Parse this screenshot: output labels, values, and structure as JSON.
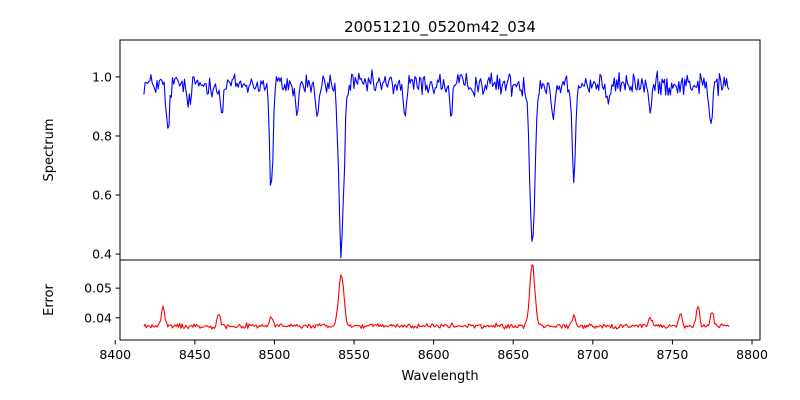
{
  "chart_data": {
    "type": "line",
    "title": "20051210_0520m42_034",
    "xlabel": "Wavelength",
    "xlim": [
      8403,
      8805
    ],
    "xticks": [
      8400,
      8450,
      8500,
      8550,
      8600,
      8650,
      8700,
      8750,
      8800
    ],
    "x_range": [
      8418,
      8786
    ],
    "panels": [
      {
        "id": "spectrum",
        "ylabel": "Spectrum",
        "ylim": [
          0.38,
          1.125
        ],
        "yticks": [
          0.4,
          0.6,
          0.8,
          1.0
        ],
        "ytick_labels": [
          "0.4",
          "0.6",
          "0.8",
          "1.0"
        ],
        "series": [
          {
            "color": "#0000ff",
            "baseline": 0.975,
            "noise": 0.04,
            "features": [
              {
                "x": 8433,
                "depth": 0.17,
                "width": 1.0
              },
              {
                "x": 8446,
                "depth": 0.08,
                "width": 1.0
              },
              {
                "x": 8467,
                "depth": 0.1,
                "width": 1.0
              },
              {
                "x": 8498,
                "depth": 0.36,
                "width": 1.1
              },
              {
                "x": 8514,
                "depth": 0.1,
                "width": 1.0
              },
              {
                "x": 8527,
                "depth": 0.1,
                "width": 1.2
              },
              {
                "x": 8542,
                "depth": 0.56,
                "width": 1.6
              },
              {
                "x": 8582,
                "depth": 0.1,
                "width": 1.0
              },
              {
                "x": 8611,
                "depth": 0.1,
                "width": 1.0
              },
              {
                "x": 8662,
                "depth": 0.53,
                "width": 1.6
              },
              {
                "x": 8675,
                "depth": 0.12,
                "width": 1.0
              },
              {
                "x": 8688,
                "depth": 0.31,
                "width": 1.0
              },
              {
                "x": 8710,
                "depth": 0.08,
                "width": 1.0
              },
              {
                "x": 8736,
                "depth": 0.1,
                "width": 1.0
              },
              {
                "x": 8774,
                "depth": 0.15,
                "width": 1.0
              }
            ]
          }
        ]
      },
      {
        "id": "error",
        "ylabel": "Error",
        "ylim": [
          0.0325,
          0.0595
        ],
        "yticks": [
          0.04,
          0.05
        ],
        "ytick_labels": [
          "0.04",
          "0.05"
        ],
        "series": [
          {
            "color": "#ff0000",
            "baseline": 0.0372,
            "noise": 0.0009,
            "features": [
              {
                "x": 8430,
                "height": 0.0065,
                "width": 1.0
              },
              {
                "x": 8465,
                "height": 0.0045,
                "width": 1.0
              },
              {
                "x": 8498,
                "height": 0.0035,
                "width": 1.0
              },
              {
                "x": 8542,
                "height": 0.0178,
                "width": 1.6
              },
              {
                "x": 8662,
                "height": 0.021,
                "width": 1.6
              },
              {
                "x": 8688,
                "height": 0.0035,
                "width": 1.0
              },
              {
                "x": 8736,
                "height": 0.003,
                "width": 1.0
              },
              {
                "x": 8755,
                "height": 0.004,
                "width": 1.0
              },
              {
                "x": 8766,
                "height": 0.0065,
                "width": 1.0
              },
              {
                "x": 8775,
                "height": 0.005,
                "width": 1.0
              }
            ]
          }
        ]
      }
    ]
  }
}
